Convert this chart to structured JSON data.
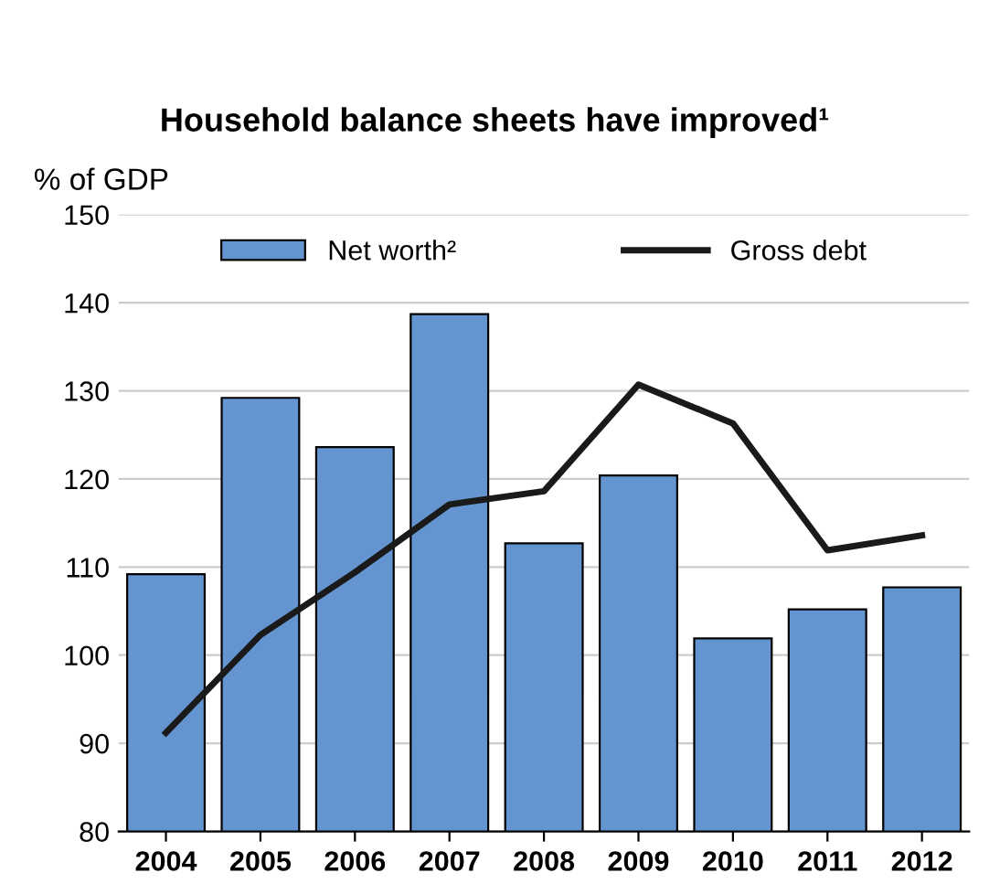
{
  "chart_data": {
    "type": "bar",
    "title": "Household balance sheets have improved¹",
    "ylabel": "% of GDP",
    "categories": [
      "2004",
      "2005",
      "2006",
      "2007",
      "2008",
      "2009",
      "2010",
      "2011",
      "2012"
    ],
    "series": [
      {
        "name": "Net worth²",
        "color": "#6495d0",
        "values": [
          109.2,
          129.2,
          123.6,
          138.7,
          112.7,
          120.4,
          101.9,
          105.2,
          107.7
        ]
      },
      {
        "name": "Gross debt",
        "type": "line",
        "color": "#1a1a1a",
        "values": [
          91.2,
          102.3,
          109.4,
          117.1,
          118.6,
          130.7,
          126.3,
          111.9,
          113.6
        ]
      }
    ],
    "ylim": [
      80,
      150
    ],
    "yticks": [
      80,
      90,
      100,
      110,
      120,
      130,
      140,
      150
    ],
    "grid": "y",
    "legend": "top",
    "marker": "none",
    "line_style": "solid"
  }
}
